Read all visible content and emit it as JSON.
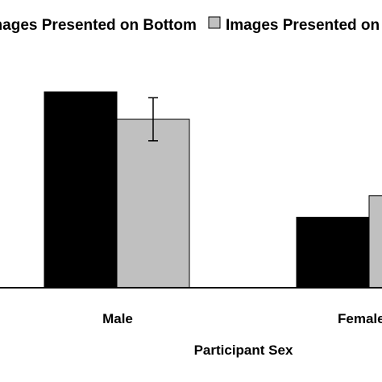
{
  "chart_data": {
    "type": "bar",
    "categories": [
      "Male",
      "Female"
    ],
    "series": [
      {
        "name": "Images Presented on Bottom",
        "color": "#000000",
        "values": [
          2.0,
          0.72
        ]
      },
      {
        "name": "Images Presented on Top",
        "color": "#c0c0c0",
        "values": [
          1.72,
          0.94
        ],
        "error": [
          0.22,
          null
        ]
      }
    ],
    "xlabel": "Participant Sex",
    "ylabel": "",
    "ylim": [
      0,
      2.0
    ],
    "legend_position": "top",
    "grid": false
  },
  "legend": {
    "item_1": "Images Presented on Bottom",
    "item_2": "Images Presented on Top"
  },
  "axis": {
    "x_title": "Participant Sex",
    "tick_1": "Male",
    "tick_2": "Female"
  }
}
